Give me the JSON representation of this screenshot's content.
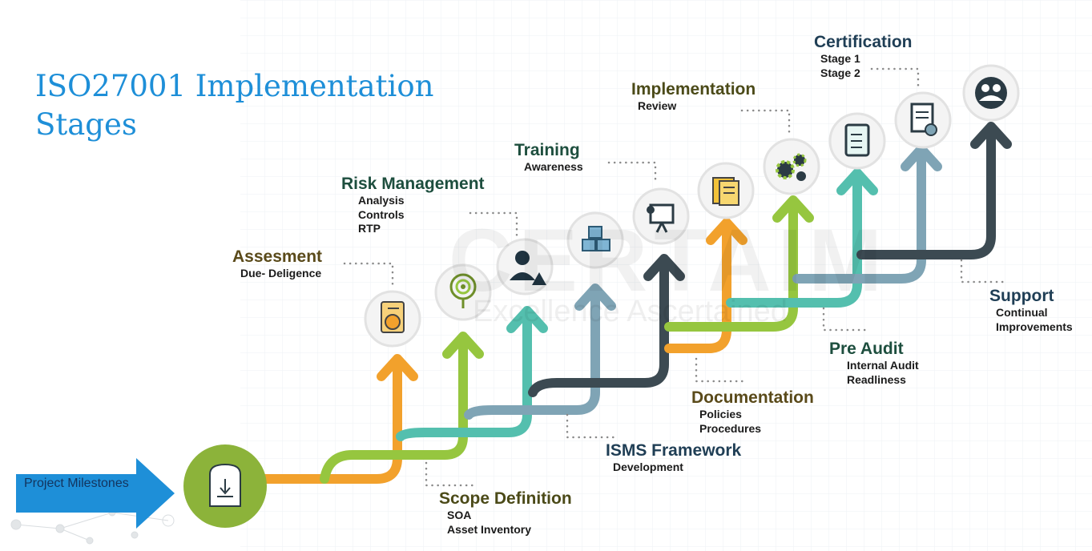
{
  "title": "ISO27001 Implementation\n Stages",
  "project_milestones": "Project Milestones",
  "watermark": {
    "main": "CERTAIM",
    "tagline": "Excellence Ascertained"
  },
  "stages": [
    {
      "key": "assesment",
      "name": "Assesment",
      "details": [
        "Due- Deligence"
      ],
      "color": "#5a4a1a",
      "icon": "clipboard-chart-icon"
    },
    {
      "key": "risk",
      "name": "Risk Management",
      "details": [
        "Analysis",
        "Controls",
        "RTP"
      ],
      "color": "#1d4e3e",
      "icon": "target-icon"
    },
    {
      "key": "training",
      "name": "Training",
      "details": [
        "Awareness"
      ],
      "color": "#1d4e3e",
      "icon": "presentation-icon"
    },
    {
      "key": "implementation",
      "name": "Implementation",
      "details": [
        "Review"
      ],
      "color": "#4b4a18",
      "icon": "gears-icon"
    },
    {
      "key": "certification",
      "name": "Certification",
      "details": [
        "Stage 1",
        "Stage 2"
      ],
      "color": "#1f3e55",
      "icon": "certificate-icon"
    },
    {
      "key": "support",
      "name": "Support",
      "details": [
        "Continual",
        "Improvements"
      ],
      "color": "#1f3e55",
      "icon": "team-gears-icon"
    },
    {
      "key": "preaudit",
      "name": "Pre Audit",
      "details": [
        "Internal Audit",
        "Readliness"
      ],
      "color": "#1d4e3e",
      "icon": "checklist-icon"
    },
    {
      "key": "documentation",
      "name": "Documentation",
      "details": [
        "Policies",
        "Procedures"
      ],
      "color": "#5a4a1a",
      "icon": "documents-icon"
    },
    {
      "key": "isms",
      "name": "ISMS Framework",
      "details": [
        "Development"
      ],
      "color": "#1f3e55",
      "icon": "cubes-icon"
    },
    {
      "key": "scope",
      "name": "Scope Definition",
      "details": [
        "SOA",
        "Asset Inventory"
      ],
      "color": "#4b4a18",
      "icon": "person-warning-icon"
    }
  ],
  "colors": {
    "orange": "#f2a12c",
    "lime": "#96c63f",
    "teal": "#54bfae",
    "slate": "#7fa4b5",
    "dark": "#3c4a52",
    "blue": "#1e8fd8",
    "green_circle": "#8cb33a"
  }
}
